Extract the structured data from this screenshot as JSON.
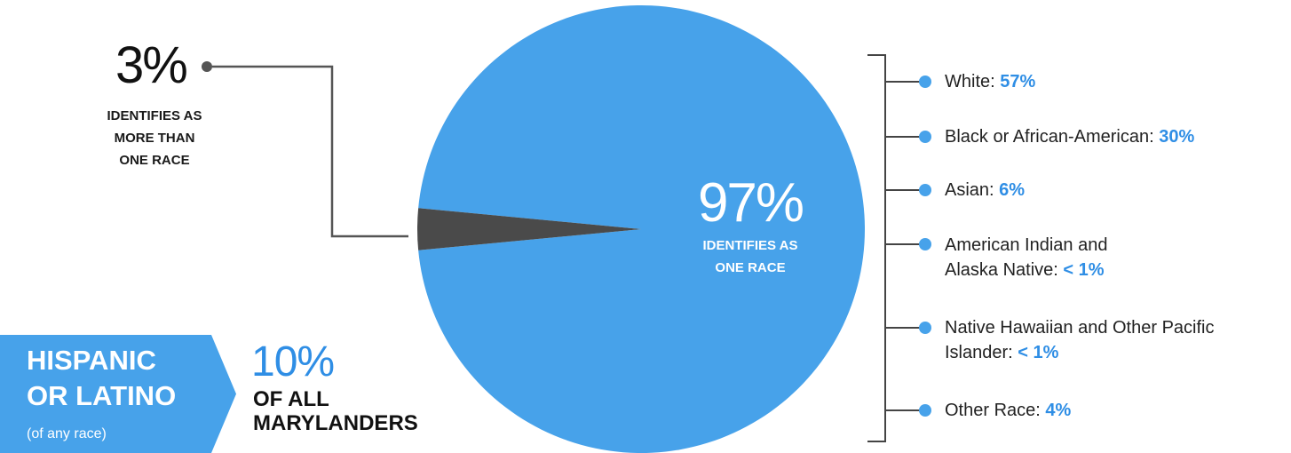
{
  "chart_data": {
    "type": "pie",
    "categories": [
      "Identifies as one race",
      "Identifies as more than one race"
    ],
    "values": [
      97,
      3
    ],
    "colors": [
      "#47a2ea",
      "#4a4a4a"
    ],
    "slices": [
      {
        "value_text": "97%",
        "label": "IDENTIFIES AS\nONE RACE"
      },
      {
        "value_text": "3%",
        "label": "IDENTIFIES AS\nMORE THAN\nONE RACE"
      }
    ],
    "breakdown": [
      {
        "label": "White: ",
        "value_text": "57%",
        "value": 57
      },
      {
        "label": "Black or African-American: ",
        "value_text": "30%",
        "value": 30
      },
      {
        "label": "Asian: ",
        "value_text": "6%",
        "value": 6
      },
      {
        "label": "American Indian and\nAlaska Native: ",
        "value_text": "< 1%",
        "value": 1
      },
      {
        "label": "Native Hawaiian and Other Pacific\nIslander: ",
        "value_text": "< 1%",
        "value": 1
      },
      {
        "label": "Other Race: ",
        "value_text": "4%",
        "value": 4
      }
    ]
  },
  "hispanic": {
    "title": "HISPANIC\nOR LATINO",
    "subtitle": "(of any race)",
    "value_text": "10%",
    "label": "OF ALL\nMARYLANDERS",
    "value": 10
  },
  "colors": {
    "accent": "#47a2ea",
    "accent_text": "#2f8ee5",
    "dark_slice": "#4a4a4a",
    "connector": "#555555"
  }
}
